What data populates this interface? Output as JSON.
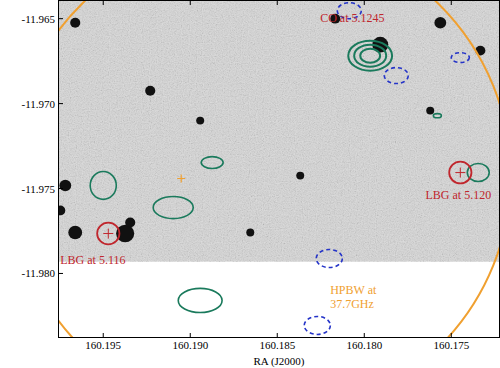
{
  "chart_data": {
    "type": "sky_map",
    "xlabel": "RA (J2000)",
    "xlim": [
      160.1976,
      160.1722
    ],
    "ylim": [
      -11.9838,
      -11.9639
    ],
    "xticks": [
      160.195,
      {
        "value": 160.19,
        "label": "160.190"
      },
      160.185,
      {
        "value": 160.18,
        "label": "160.180"
      },
      160.175
    ],
    "yticks": [
      -11.965,
      {
        "value": -11.97,
        "label": "-11.970"
      },
      -11.975,
      {
        "value": -11.98,
        "label": "-11.980"
      }
    ],
    "image": {
      "dec_min": -11.9793
    },
    "sources": [
      {
        "ra": 160.17908,
        "dec": -11.96653,
        "radius": 0.00046
      },
      {
        "ra": 160.18167,
        "dec": -11.965,
        "radius": 0.00029
      },
      {
        "ra": 160.19718,
        "dec": -11.97482,
        "radius": 0.00034
      },
      {
        "ra": 160.19747,
        "dec": -11.97629,
        "radius": 0.00029
      },
      {
        "ra": 160.19661,
        "dec": -11.97759,
        "radius": 0.0004
      },
      {
        "ra": 160.19374,
        "dec": -11.97765,
        "radius": 0.00052
      },
      {
        "ra": 160.19345,
        "dec": -11.977,
        "radius": 0.00029
      },
      {
        "ra": 160.18943,
        "dec": -11.971,
        "radius": 0.00023
      },
      {
        "ra": 160.1923,
        "dec": -11.96924,
        "radius": 0.00029
      },
      {
        "ra": 160.17333,
        "dec": -11.96688,
        "radius": 0.00029
      },
      {
        "ra": 160.17563,
        "dec": -11.96524,
        "radius": 0.00034
      },
      {
        "ra": 160.18368,
        "dec": -11.97424,
        "radius": 0.00023
      },
      {
        "ra": 160.19661,
        "dec": -11.96524,
        "radius": 0.00029
      },
      {
        "ra": 160.18655,
        "dec": -11.97759,
        "radius": 0.00023
      },
      {
        "ra": 160.17621,
        "dec": -11.97041,
        "radius": 0.00023
      }
    ],
    "beam": {
      "label": [
        "HPBW at",
        "37.7GHz"
      ],
      "ra": 160.18598,
      "dec": -11.97424,
      "radius": 0.0144,
      "color": "#f0a030"
    },
    "pointing": {
      "ra": 160.19052,
      "dec": -11.97441,
      "color": "#f0a030"
    },
    "co_source": {
      "label": "CO at 5.1245",
      "ra": 160.17966,
      "dec": -11.96718,
      "color": "#1a7a5c",
      "contours": [
        {
          "rx": 0.00126,
          "ry": 0.00088
        },
        {
          "rx": 0.00092,
          "ry": 0.00065
        },
        {
          "rx": 0.00057,
          "ry": 0.00041
        }
      ]
    },
    "contours": {
      "color": "#1a7a5c",
      "items": [
        {
          "ra": 160.195,
          "dec": -11.97482,
          "rx": 0.00075,
          "ry": 0.00082
        },
        {
          "ra": 160.19098,
          "dec": -11.97612,
          "rx": 0.00115,
          "ry": 0.00065
        },
        {
          "ra": 160.18874,
          "dec": -11.97347,
          "rx": 0.00063,
          "ry": 0.00035
        },
        {
          "ra": 160.18943,
          "dec": -11.98159,
          "rx": 0.00126,
          "ry": 0.00071
        },
        {
          "ra": 160.17345,
          "dec": -11.97406,
          "rx": 0.00063,
          "ry": 0.00053
        },
        {
          "ra": 160.1758,
          "dec": -11.97071,
          "rx": 0.00023,
          "ry": 0.00012
        }
      ]
    },
    "negative_contours": {
      "color": "#2433c8",
      "line_style": "dashed",
      "items": [
        {
          "ra": 160.18086,
          "dec": -11.96453,
          "rx": 0.00069,
          "ry": 0.00047
        },
        {
          "ra": 160.17816,
          "dec": -11.96835,
          "rx": 0.00069,
          "ry": 0.00047
        },
        {
          "ra": 160.17448,
          "dec": -11.96729,
          "rx": 0.00052,
          "ry": 0.00029
        },
        {
          "ra": 160.18201,
          "dec": -11.97912,
          "rx": 0.00075,
          "ry": 0.00053
        },
        {
          "ra": 160.1827,
          "dec": -11.98306,
          "rx": 0.00075,
          "ry": 0.00053
        }
      ]
    },
    "lbg": [
      {
        "label": "LBG at 5.116",
        "ra": 160.19471,
        "dec": -11.97765,
        "radius": 0.00064,
        "color": "#c0262d"
      },
      {
        "label": "LBG at 5.120",
        "ra": 160.17448,
        "dec": -11.97406,
        "radius": 0.00064,
        "color": "#c0262d"
      }
    ]
  }
}
